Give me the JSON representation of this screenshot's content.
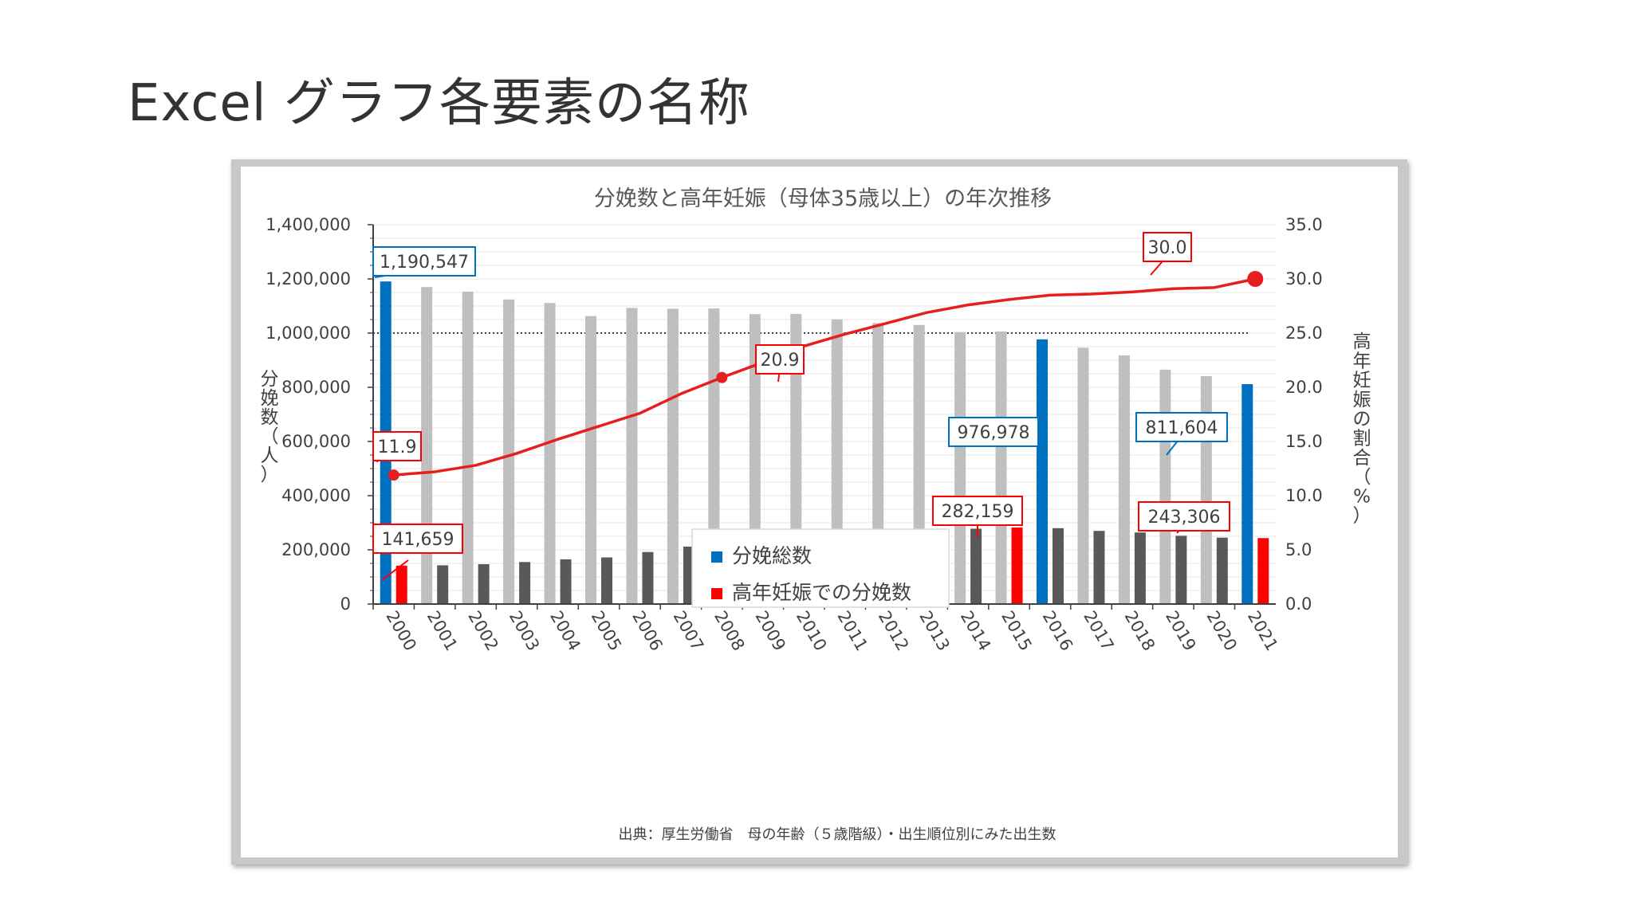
{
  "slide": {
    "title": "Excel グラフ各要素の名称"
  },
  "chart_data": {
    "type": "bar",
    "title": "分娩数と高年妊娠（母体35歳以上）の年次推移",
    "ylabel": "分娩数（人）",
    "y2label": "高年妊娠の割合（%）",
    "source": "出典：厚生労働省　母の年齢（５歳階級）・出生順位別にみた出生数",
    "ylim": [
      0,
      1400000
    ],
    "y2lim": [
      0,
      35
    ],
    "yticks": [
      "0",
      "200,000",
      "400,000",
      "600,000",
      "800,000",
      "1,000,000",
      "1,200,000",
      "1,400,000"
    ],
    "y2ticks": [
      "0.0",
      "5.0",
      "10.0",
      "15.0",
      "20.0",
      "25.0",
      "30.0",
      "35.0"
    ],
    "reference_line": 1000000,
    "grid": true,
    "legend_position": "center",
    "categories": [
      "2000",
      "2001",
      "2002",
      "2003",
      "2004",
      "2005",
      "2006",
      "2007",
      "2008",
      "2009",
      "2010",
      "2011",
      "2012",
      "2013",
      "2014",
      "2015",
      "2016",
      "2017",
      "2018",
      "2019",
      "2020",
      "2021"
    ],
    "series": [
      {
        "name": "分娩総数",
        "type": "bar",
        "color": "#0070c0",
        "default_color": "#bfbfbf",
        "highlight": [
          "2000",
          "2016",
          "2021"
        ],
        "values": [
          1190547,
          1170000,
          1153000,
          1124000,
          1111000,
          1063000,
          1093000,
          1090000,
          1091000,
          1070000,
          1071000,
          1051000,
          1037000,
          1030000,
          1004000,
          1006000,
          976978,
          946000,
          918000,
          865000,
          841000,
          811604
        ]
      },
      {
        "name": "高年妊娠での分娩数",
        "type": "bar",
        "color": "#ff0000",
        "default_color": "#595959",
        "highlight": [
          "2000",
          "2015",
          "2021"
        ],
        "values": [
          141659,
          143000,
          147000,
          155000,
          165000,
          172000,
          192000,
          212000,
          230000,
          240000,
          256000,
          262000,
          268000,
          277000,
          278000,
          282159,
          280000,
          270000,
          264000,
          252000,
          245000,
          243306
        ]
      },
      {
        "name": "高年妊娠の割合",
        "type": "line",
        "color": "#e61e1e",
        "axis": "y2",
        "values": [
          11.9,
          12.2,
          12.8,
          13.9,
          15.2,
          16.4,
          17.6,
          19.4,
          20.9,
          22.3,
          23.8,
          24.9,
          25.9,
          26.9,
          27.6,
          28.1,
          28.5,
          28.6,
          28.8,
          29.1,
          29.2,
          30.0
        ]
      }
    ],
    "annotations": [
      {
        "text": "1,190,547",
        "series": 0,
        "index": 0,
        "color": "#0070c0"
      },
      {
        "text": "976,978",
        "series": 0,
        "index": 16,
        "color": "#0070c0"
      },
      {
        "text": "811,604",
        "series": 0,
        "index": 21,
        "color": "#0070c0"
      },
      {
        "text": "141,659",
        "series": 1,
        "index": 0,
        "color": "#ff0000"
      },
      {
        "text": "282,159",
        "series": 1,
        "index": 15,
        "color": "#ff0000"
      },
      {
        "text": "243,306",
        "series": 1,
        "index": 21,
        "color": "#ff0000"
      },
      {
        "text": "11.9",
        "series": 2,
        "index": 0,
        "color": "#ff0000"
      },
      {
        "text": "20.9",
        "series": 2,
        "index": 8,
        "color": "#ff0000"
      },
      {
        "text": "30.0",
        "series": 2,
        "index": 21,
        "color": "#ff0000"
      }
    ]
  }
}
